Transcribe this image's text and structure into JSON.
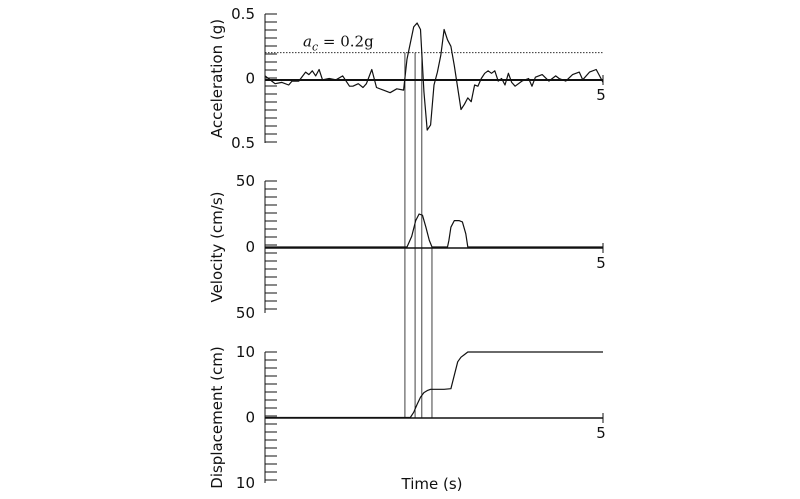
{
  "chart_data": [
    {
      "type": "line",
      "panel": "acceleration",
      "ylabel": "Acceleration (g)",
      "xlim": [
        0,
        5
      ],
      "ylim": [
        -0.5,
        0.5
      ],
      "y_tick_labels": [
        {
          "value": 0.5,
          "label": "0.5"
        },
        {
          "value": 0,
          "label": "0"
        },
        {
          "value": -0.5,
          "label": "0.5"
        }
      ],
      "x_tick_labels": [
        {
          "value": 5,
          "label": "5"
        }
      ],
      "threshold": {
        "value": 0.2,
        "label_var": "a",
        "label_sub": "c",
        "label_rest": " = 0.2g"
      },
      "series": [
        {
          "x": [
            0.0,
            0.1,
            0.15,
            0.25,
            0.35,
            0.4,
            0.5,
            0.6,
            0.65,
            0.7,
            0.75,
            0.8,
            0.85,
            0.95,
            1.05,
            1.15,
            1.25,
            1.3,
            1.38,
            1.45,
            1.5,
            1.58,
            1.65,
            1.75,
            1.85,
            1.95,
            2.05,
            2.1,
            2.2,
            2.25,
            2.3,
            2.35,
            2.4,
            2.45,
            2.5,
            2.55,
            2.6,
            2.65,
            2.7,
            2.75,
            2.8,
            2.9,
            2.95,
            3.0,
            3.05,
            3.1,
            3.15,
            3.2,
            3.25,
            3.3,
            3.35,
            3.4,
            3.45,
            3.5,
            3.55,
            3.6,
            3.65,
            3.7,
            3.8,
            3.9,
            3.95,
            4.0,
            4.1,
            4.2,
            4.3,
            4.35,
            4.45,
            4.55,
            4.65,
            4.7,
            4.8,
            4.9,
            4.95,
            5.0
          ],
          "values": [
            0.02,
            -0.02,
            -0.04,
            -0.03,
            -0.05,
            -0.02,
            -0.02,
            0.05,
            0.03,
            0.06,
            0.02,
            0.07,
            -0.01,
            0.0,
            -0.01,
            0.02,
            -0.06,
            -0.06,
            -0.04,
            -0.07,
            -0.04,
            0.07,
            -0.07,
            -0.09,
            -0.11,
            -0.08,
            -0.09,
            0.15,
            0.4,
            0.43,
            0.38,
            -0.1,
            -0.4,
            -0.36,
            -0.05,
            0.05,
            0.18,
            0.38,
            0.3,
            0.25,
            0.1,
            -0.24,
            -0.2,
            -0.15,
            -0.18,
            -0.05,
            -0.06,
            0.0,
            0.04,
            0.06,
            0.04,
            0.06,
            -0.02,
            0.0,
            -0.05,
            0.04,
            -0.03,
            -0.06,
            -0.02,
            0.0,
            -0.06,
            0.01,
            0.03,
            -0.02,
            0.02,
            0.0,
            -0.02,
            0.03,
            0.05,
            -0.01,
            0.05,
            0.07,
            0.02,
            -0.03
          ]
        }
      ]
    },
    {
      "type": "line",
      "panel": "velocity",
      "ylabel": "Velocity (cm/s)",
      "xlim": [
        0,
        5
      ],
      "ylim": [
        -50,
        50
      ],
      "y_tick_labels": [
        {
          "value": 50,
          "label": "50"
        },
        {
          "value": 0,
          "label": "0"
        },
        {
          "value": -50,
          "label": "50"
        }
      ],
      "x_tick_labels": [
        {
          "value": 5,
          "label": "5"
        }
      ],
      "series": [
        {
          "x": [
            0.0,
            2.1,
            2.17,
            2.23,
            2.28,
            2.33,
            2.38,
            2.43,
            2.47,
            2.5,
            2.6,
            2.7,
            2.72,
            2.75,
            2.8,
            2.87,
            2.92,
            2.97,
            3.0,
            5.0
          ],
          "values": [
            0,
            0,
            8,
            20,
            25,
            24,
            15,
            5,
            0,
            0,
            0,
            0,
            5,
            15,
            20,
            20,
            19,
            10,
            0,
            0
          ]
        }
      ]
    },
    {
      "type": "line",
      "panel": "displacement",
      "ylabel": "Displacement (cm)",
      "xlabel": "Time (s)",
      "xlim": [
        0,
        5
      ],
      "ylim": [
        -10,
        10
      ],
      "y_tick_labels": [
        {
          "value": 10,
          "label": "10"
        },
        {
          "value": 0,
          "label": "0"
        },
        {
          "value": -10,
          "label": "10"
        }
      ],
      "x_tick_labels": [
        {
          "value": 5,
          "label": "5"
        }
      ],
      "series": [
        {
          "x": [
            0.0,
            2.15,
            2.2,
            2.25,
            2.3,
            2.35,
            2.4,
            2.45,
            2.55,
            2.65,
            2.75,
            2.85,
            2.9,
            2.95,
            3.0,
            5.0
          ],
          "values": [
            0,
            0,
            0.8,
            2.0,
            3.1,
            3.8,
            4.1,
            4.3,
            4.3,
            4.3,
            4.4,
            8.5,
            9.2,
            9.6,
            10,
            10
          ]
        }
      ]
    }
  ],
  "guide_lines": {
    "x_values": [
      2.07,
      2.22,
      2.32,
      2.47
    ]
  }
}
